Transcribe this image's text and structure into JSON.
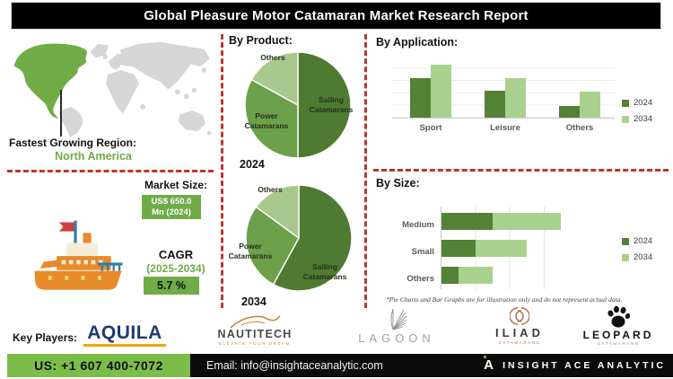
{
  "title": "Global Pleasure Motor Catamaran Market Research Report",
  "region": {
    "label": "Fastest Growing Region:",
    "value": "North America"
  },
  "market": {
    "size_label": "Market Size:",
    "size_value": "US$ 650.0 Mn (2024)",
    "cagr_label": "CAGR",
    "cagr_period": "(2025-2034)",
    "cagr_value": "5.7 %"
  },
  "sections": {
    "by_product": "By Product:",
    "by_application": "By Application:",
    "by_size": "By Size:"
  },
  "note": "*Pie Charts and Bar Graphs are for illustration only and do not represent actual data.",
  "key_players": {
    "label": "Key Players:",
    "items": [
      {
        "name": "AQUILA",
        "tagline": ""
      },
      {
        "name": "NAUTITECH",
        "tagline": "ELEVATE YOUR DREAM"
      },
      {
        "name": "LAGOON",
        "tagline": ""
      },
      {
        "name": "ILIAD",
        "tagline": "CATAMARANS"
      },
      {
        "name": "LEOPARD",
        "tagline": "CATAMARANS"
      }
    ]
  },
  "footer": {
    "phone": "US: +1 607 400-7072",
    "email": "Email: info@insightaceanalytic.com",
    "brand": "INSIGHT ACE ANALYTIC"
  },
  "colors": {
    "dark_green": "#538135",
    "mid_green": "#6CA04A",
    "light_green": "#A9D18E",
    "accent_green": "#6FAC46",
    "footer_green": "#7CBD4A",
    "dashed_red": "#BE3430",
    "map_gray": "#D6D6D6"
  },
  "chart_data": [
    {
      "type": "pie",
      "title": "By Product (2024)",
      "year_label": "2024",
      "slices": [
        {
          "name": "Sailing Catamarans",
          "value": 50,
          "color": "#4E7B31"
        },
        {
          "name": "Power Catamarans",
          "value": 33,
          "color": "#6CA04A"
        },
        {
          "name": "Others",
          "value": 17,
          "color": "#A9C88E"
        }
      ]
    },
    {
      "type": "pie",
      "title": "By Product (2034)",
      "year_label": "2034",
      "slices": [
        {
          "name": "Sailing Catamarans",
          "value": 58,
          "color": "#4E7B31"
        },
        {
          "name": "Power Catamarans",
          "value": 27,
          "color": "#6CA04A"
        },
        {
          "name": "Others",
          "value": 15,
          "color": "#A9C88E"
        }
      ]
    },
    {
      "type": "bar",
      "title": "By Application",
      "categories": [
        "Sport",
        "Leisure",
        "Others"
      ],
      "series": [
        {
          "name": "2024",
          "color": "#538135",
          "values": [
            65,
            45,
            20
          ]
        },
        {
          "name": "2034",
          "color": "#A9D18E",
          "values": [
            88,
            65,
            43
          ]
        }
      ],
      "ylim": [
        0,
        100
      ],
      "grid": true,
      "legend_position": "right"
    },
    {
      "type": "bar",
      "orientation": "horizontal",
      "stacked": true,
      "title": "By Size",
      "categories": [
        "Medium",
        "Small",
        "Others"
      ],
      "series": [
        {
          "name": "2024",
          "color": "#538135",
          "values": [
            30,
            20,
            10
          ]
        },
        {
          "name": "2034",
          "color": "#A9D18E",
          "values": [
            40,
            30,
            20
          ]
        }
      ],
      "xlim": [
        0,
        80
      ],
      "grid": true,
      "legend_position": "right"
    }
  ]
}
